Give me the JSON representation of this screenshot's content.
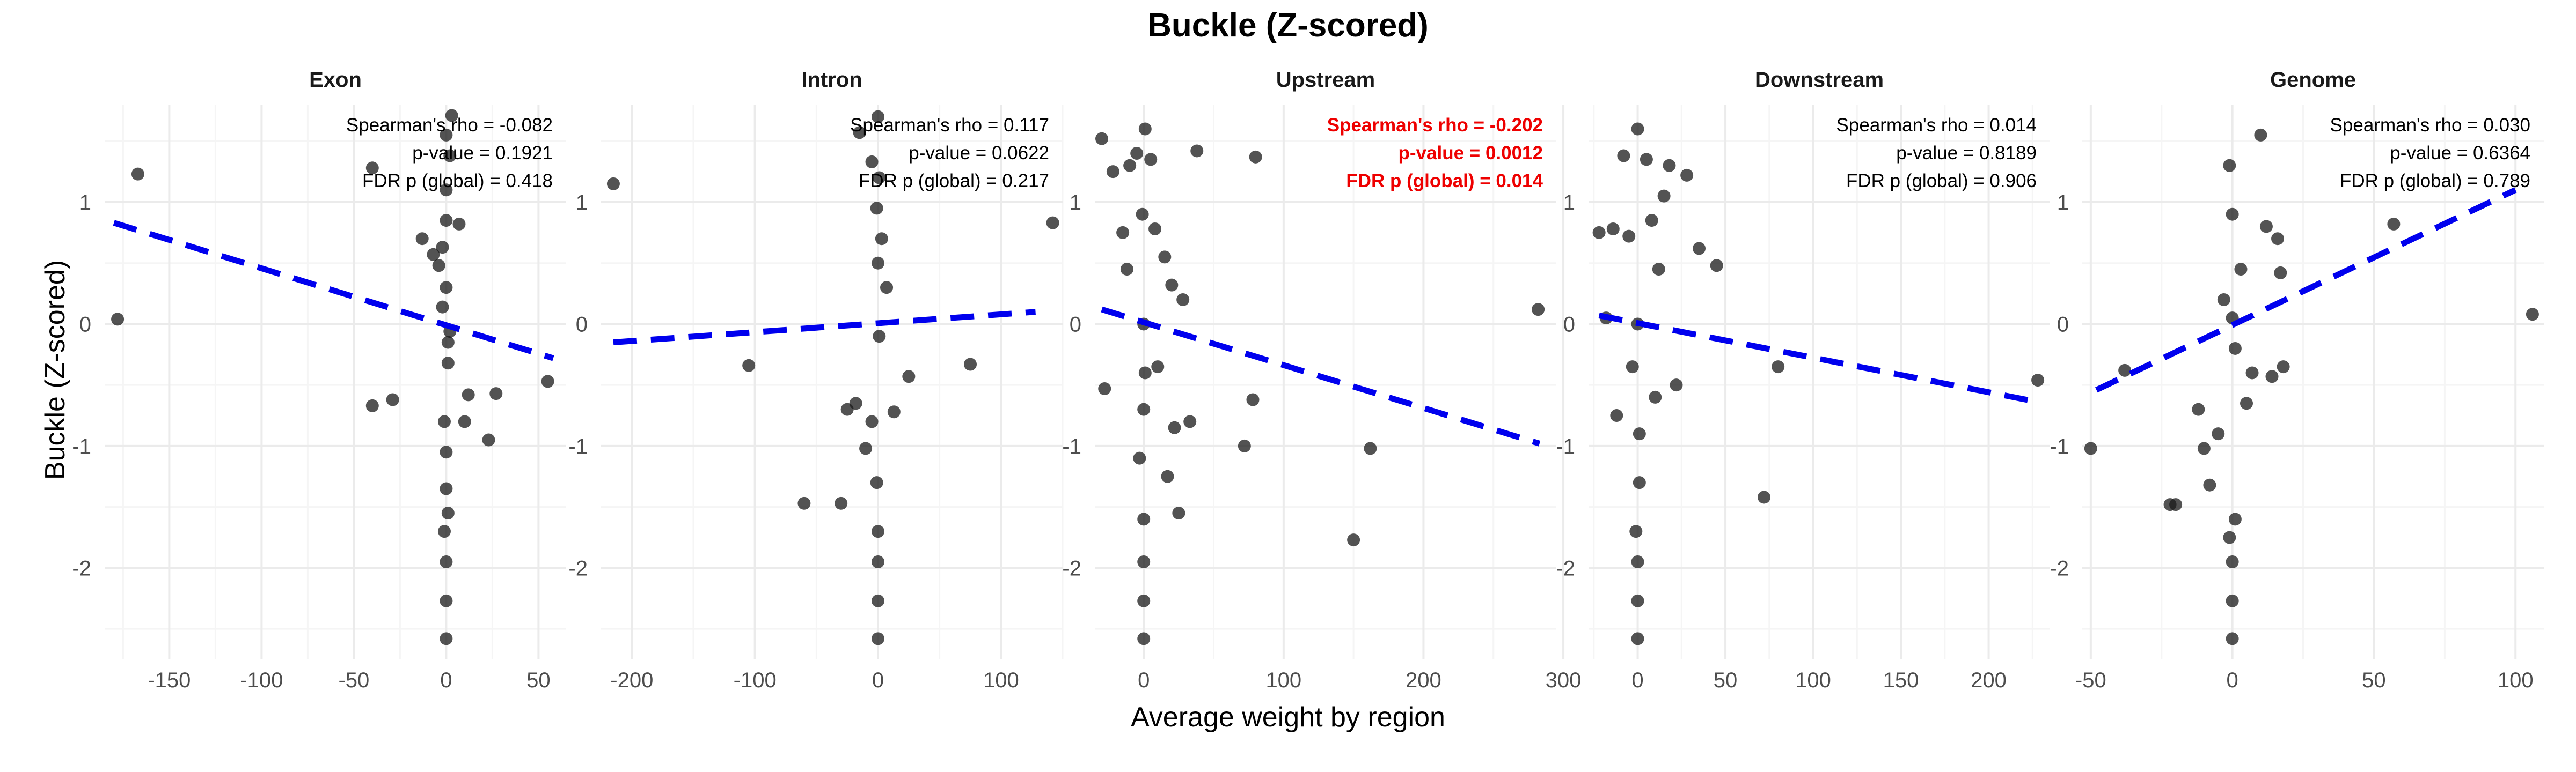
{
  "title": "Buckle (Z-scored)",
  "xlabel": "Average weight by region",
  "ylabel": "Buckle (Z-scored)",
  "colors": {
    "point": "#1a1a1a",
    "trend": "#0000ee",
    "significant": "#ee0000",
    "normal_text": "#000000",
    "grid_major": "#ebebeb",
    "grid_minor": "#f5f5f5",
    "tick_text": "#4d4d4d"
  },
  "chart_data": [
    {
      "type": "scatter",
      "panel": "Exon",
      "xlim": [
        -185,
        65
      ],
      "ylim": [
        -2.75,
        1.8
      ],
      "x_ticks": [
        -150,
        -100,
        -50,
        0,
        50
      ],
      "y_ticks": [
        -2,
        -1,
        0,
        1
      ],
      "stats": [
        "Spearman's rho = -0.082",
        "p-value = 0.1921",
        "FDR p (global) = 0.418"
      ],
      "significant": false,
      "trend": {
        "x": [
          -180,
          58
        ],
        "y": [
          0.83,
          -0.28
        ]
      },
      "points": [
        [
          -178,
          0.04
        ],
        [
          -167,
          1.23
        ],
        [
          -40,
          -0.67
        ],
        [
          -29,
          -0.62
        ],
        [
          -40,
          1.28
        ],
        [
          -13,
          0.7
        ],
        [
          -7,
          0.57
        ],
        [
          -4,
          0.48
        ],
        [
          -2,
          0.63
        ],
        [
          3,
          1.71
        ],
        [
          2,
          1.38
        ],
        [
          -2,
          0.14
        ],
        [
          2,
          -0.06
        ],
        [
          7,
          0.82
        ],
        [
          12,
          -0.58
        ],
        [
          10,
          -0.8
        ],
        [
          23,
          -0.95
        ],
        [
          27,
          -0.57
        ],
        [
          55,
          -0.47
        ],
        [
          0,
          -1.95
        ],
        [
          0,
          -2.27
        ],
        [
          0,
          -2.58
        ],
        [
          0,
          0.85
        ],
        [
          0,
          0.3
        ],
        [
          1,
          -0.32
        ],
        [
          -1,
          -0.8
        ],
        [
          0,
          -1.35
        ],
        [
          1,
          -1.55
        ],
        [
          -1,
          -1.7
        ],
        [
          0,
          1.55
        ],
        [
          0,
          1.1
        ],
        [
          1,
          -0.15
        ],
        [
          0,
          -1.05
        ]
      ]
    },
    {
      "type": "scatter",
      "panel": "Intron",
      "xlim": [
        -225,
        150
      ],
      "ylim": [
        -2.75,
        1.8
      ],
      "x_ticks": [
        -200,
        -100,
        0,
        100
      ],
      "y_ticks": [
        -2,
        -1,
        0,
        1
      ],
      "stats": [
        "Spearman's rho = 0.117",
        "p-value = 0.0622",
        "FDR p (global) = 0.217"
      ],
      "significant": false,
      "trend": {
        "x": [
          -215,
          128
        ],
        "y": [
          -0.15,
          0.1
        ]
      },
      "points": [
        [
          -215,
          1.15
        ],
        [
          -105,
          -0.34
        ],
        [
          -60,
          -1.47
        ],
        [
          -30,
          -1.47
        ],
        [
          -25,
          -0.7
        ],
        [
          -18,
          -0.65
        ],
        [
          -10,
          -1.02
        ],
        [
          -5,
          -0.8
        ],
        [
          -15,
          1.57
        ],
        [
          -5,
          1.33
        ],
        [
          0,
          1.7
        ],
        [
          3,
          0.7
        ],
        [
          7,
          0.3
        ],
        [
          13,
          -0.72
        ],
        [
          25,
          -0.43
        ],
        [
          75,
          -0.33
        ],
        [
          142,
          0.83
        ],
        [
          0,
          -1.95
        ],
        [
          0,
          -2.27
        ],
        [
          0,
          -2.58
        ],
        [
          0,
          0.5
        ],
        [
          1,
          -0.1
        ],
        [
          -1,
          -1.3
        ],
        [
          0,
          -1.7
        ],
        [
          1,
          1.2
        ],
        [
          -1,
          0.95
        ]
      ]
    },
    {
      "type": "scatter",
      "panel": "Upstream",
      "xlim": [
        -35,
        295
      ],
      "ylim": [
        -2.75,
        1.8
      ],
      "x_ticks": [
        0,
        100,
        200,
        300
      ],
      "y_ticks": [
        -2,
        -1,
        0,
        1
      ],
      "stats": [
        "Spearman's rho = -0.202",
        "p-value = 0.0012",
        "FDR p (global) = 0.014"
      ],
      "significant": true,
      "trend": {
        "x": [
          -30,
          283
        ],
        "y": [
          0.12,
          -0.98
        ]
      },
      "points": [
        [
          -30,
          1.52
        ],
        [
          -28,
          -0.53
        ],
        [
          -22,
          1.25
        ],
        [
          -15,
          0.75
        ],
        [
          -12,
          0.45
        ],
        [
          -10,
          1.3
        ],
        [
          -5,
          1.4
        ],
        [
          -3,
          -1.1
        ],
        [
          5,
          1.35
        ],
        [
          8,
          0.78
        ],
        [
          10,
          -0.35
        ],
        [
          15,
          0.55
        ],
        [
          17,
          -1.25
        ],
        [
          20,
          0.32
        ],
        [
          22,
          -0.85
        ],
        [
          25,
          -1.55
        ],
        [
          28,
          0.2
        ],
        [
          33,
          -0.8
        ],
        [
          38,
          1.42
        ],
        [
          72,
          -1.0
        ],
        [
          78,
          -0.62
        ],
        [
          80,
          1.37
        ],
        [
          150,
          -1.77
        ],
        [
          162,
          -1.02
        ],
        [
          282,
          0.12
        ],
        [
          0,
          -1.95
        ],
        [
          0,
          -2.27
        ],
        [
          0,
          -2.58
        ],
        [
          0,
          0.0
        ],
        [
          1,
          -0.4
        ],
        [
          -1,
          0.9
        ],
        [
          0,
          -1.6
        ],
        [
          1,
          1.6
        ],
        [
          0,
          -0.7
        ]
      ]
    },
    {
      "type": "scatter",
      "panel": "Downstream",
      "xlim": [
        -28,
        235
      ],
      "ylim": [
        -2.75,
        1.8
      ],
      "x_ticks": [
        0,
        50,
        100,
        150,
        200
      ],
      "y_ticks": [
        -2,
        -1,
        0,
        1
      ],
      "stats": [
        "Spearman's rho = 0.014",
        "p-value = 0.8189",
        "FDR p (global) = 0.906"
      ],
      "significant": false,
      "trend": {
        "x": [
          -22,
          225
        ],
        "y": [
          0.07,
          -0.63
        ]
      },
      "points": [
        [
          -22,
          0.75
        ],
        [
          -18,
          0.05
        ],
        [
          -14,
          0.78
        ],
        [
          -12,
          -0.75
        ],
        [
          -8,
          1.38
        ],
        [
          -5,
          0.72
        ],
        [
          -3,
          -0.35
        ],
        [
          5,
          1.35
        ],
        [
          8,
          0.85
        ],
        [
          10,
          -0.6
        ],
        [
          12,
          0.45
        ],
        [
          15,
          1.05
        ],
        [
          18,
          1.3
        ],
        [
          22,
          -0.5
        ],
        [
          28,
          1.22
        ],
        [
          35,
          0.62
        ],
        [
          45,
          0.48
        ],
        [
          72,
          -1.42
        ],
        [
          80,
          -0.35
        ],
        [
          228,
          -0.46
        ],
        [
          0,
          -1.95
        ],
        [
          0,
          -2.27
        ],
        [
          0,
          -2.58
        ],
        [
          0,
          0.0
        ],
        [
          1,
          -1.3
        ],
        [
          -1,
          -1.7
        ],
        [
          0,
          1.6
        ],
        [
          1,
          -0.9
        ]
      ]
    },
    {
      "type": "scatter",
      "panel": "Genome",
      "xlim": [
        -53,
        110
      ],
      "ylim": [
        -2.75,
        1.8
      ],
      "x_ticks": [
        -50,
        0,
        50,
        100
      ],
      "y_ticks": [
        -2,
        -1,
        0,
        1
      ],
      "stats": [
        "Spearman's rho = 0.030",
        "p-value = 0.6364",
        "FDR p (global) = 0.789"
      ],
      "significant": false,
      "trend": {
        "x": [
          -48,
          100
        ],
        "y": [
          -0.54,
          1.1
        ]
      },
      "points": [
        [
          -50,
          -1.02
        ],
        [
          -38,
          -0.38
        ],
        [
          -22,
          -1.48
        ],
        [
          -20,
          -1.48
        ],
        [
          -12,
          -0.7
        ],
        [
          -10,
          -1.02
        ],
        [
          -8,
          -1.32
        ],
        [
          -5,
          -0.9
        ],
        [
          -3,
          0.2
        ],
        [
          3,
          0.45
        ],
        [
          5,
          -0.65
        ],
        [
          7,
          -0.4
        ],
        [
          10,
          1.55
        ],
        [
          12,
          0.8
        ],
        [
          14,
          -0.43
        ],
        [
          16,
          0.7
        ],
        [
          17,
          0.42
        ],
        [
          18,
          -0.35
        ],
        [
          57,
          0.82
        ],
        [
          106,
          0.08
        ],
        [
          0,
          -1.95
        ],
        [
          0,
          -2.27
        ],
        [
          0,
          -2.58
        ],
        [
          0,
          0.05
        ],
        [
          1,
          -1.6
        ],
        [
          -1,
          1.3
        ],
        [
          0,
          0.9
        ],
        [
          1,
          -0.2
        ],
        [
          -1,
          -1.75
        ]
      ]
    }
  ]
}
